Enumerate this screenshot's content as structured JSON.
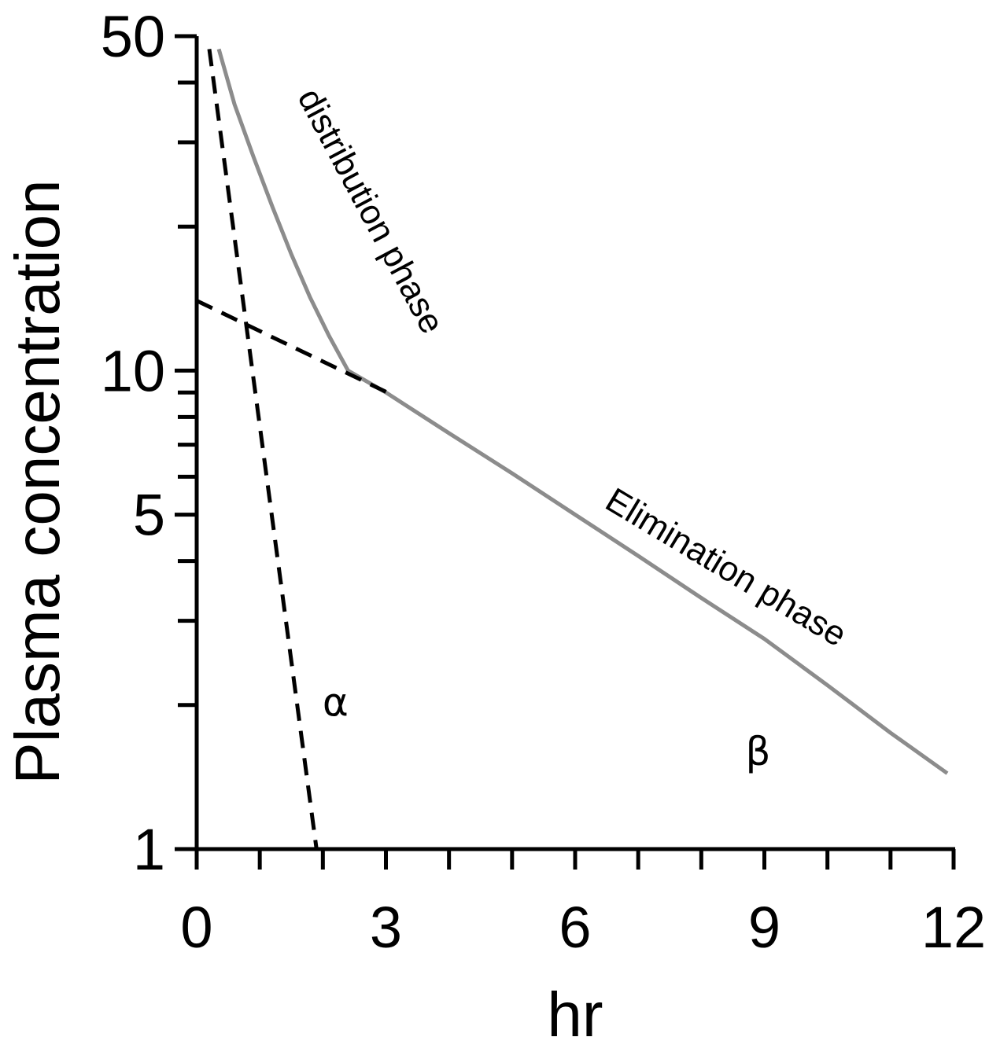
{
  "chart_data": {
    "type": "line",
    "title": "",
    "xlabel": "hr",
    "ylabel": "Plasma concentration",
    "xlim": [
      0,
      12
    ],
    "ylim": [
      1,
      50
    ],
    "yscale": "log",
    "grid": false,
    "x_ticks": [
      0,
      3,
      6,
      9,
      12
    ],
    "x_minor_ticks": [
      0,
      1,
      2,
      3,
      4,
      5,
      6,
      7,
      8,
      9,
      10,
      11,
      12
    ],
    "y_ticks": [
      1,
      5,
      10,
      50
    ],
    "y_minor_ticks": [
      2,
      3,
      4,
      6,
      7,
      8,
      9,
      20,
      30,
      40
    ],
    "series": [
      {
        "style": "solid",
        "color": "#8c8c8c",
        "x": [
          0.35,
          0.6,
          0.9,
          1.2,
          1.5,
          1.8,
          2.1,
          2.4,
          3,
          4,
          5,
          6,
          7,
          8,
          9,
          10,
          11,
          11.9
        ],
        "y": [
          47,
          36,
          28,
          22,
          17.5,
          14.2,
          11.8,
          10,
          9,
          7.4,
          6.1,
          5.0,
          4.1,
          3.35,
          2.75,
          2.2,
          1.75,
          1.44
        ]
      },
      {
        "style": "dashed",
        "color": "#000000",
        "x": [
          0.2,
          1.9
        ],
        "y": [
          47,
          1
        ]
      },
      {
        "style": "dashed",
        "color": "#000000",
        "x": [
          0,
          3.1
        ],
        "y": [
          14,
          8.9
        ]
      }
    ],
    "annotations": [
      {
        "text": "distribution phase",
        "x": 2.6,
        "y": 21
      },
      {
        "text": "Elimination phase",
        "x": 8.3,
        "y": 3.7
      },
      {
        "text": "α",
        "x": 2.2,
        "y": 1.9
      },
      {
        "text": "β",
        "x": 8.9,
        "y": 1.5
      }
    ]
  }
}
